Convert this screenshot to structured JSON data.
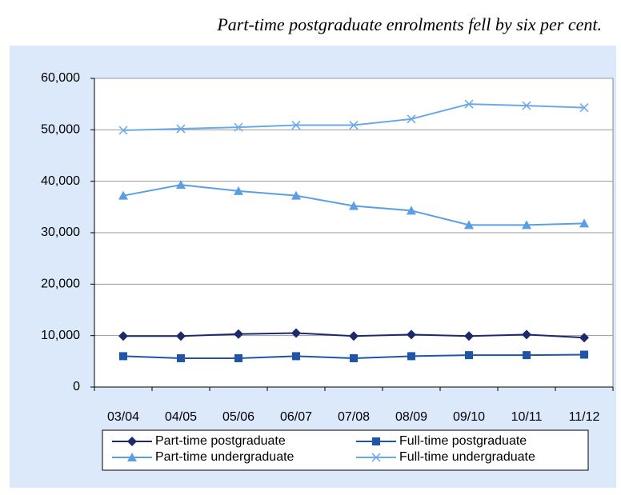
{
  "chart_data": {
    "type": "line",
    "title": "Part-time postgraduate enrolments fell by six per cent.",
    "categories": [
      "03/04",
      "04/05",
      "05/06",
      "06/07",
      "07/08",
      "08/09",
      "09/10",
      "10/11",
      "11/12"
    ],
    "series": [
      {
        "name": "Part-time postgraduate",
        "color": "#1c2a6b",
        "marker": "diamond",
        "values": [
          9900,
          9900,
          10300,
          10500,
          9900,
          10200,
          9900,
          10200,
          9600
        ]
      },
      {
        "name": "Full-time postgraduate",
        "color": "#1f55a8",
        "marker": "square",
        "values": [
          6000,
          5600,
          5600,
          6000,
          5600,
          6000,
          6200,
          6200,
          6300
        ]
      },
      {
        "name": "Part-time undergraduate",
        "color": "#5b9ee6",
        "marker": "triangle",
        "values": [
          37200,
          39300,
          38100,
          37200,
          35200,
          34300,
          31500,
          31500,
          31800
        ]
      },
      {
        "name": "Full-time undergraduate",
        "color": "#6aa8ec",
        "marker": "x",
        "values": [
          49900,
          50200,
          50500,
          50900,
          50900,
          52100,
          55000,
          54700,
          54300
        ]
      }
    ],
    "ylim": [
      0,
      60000
    ],
    "yticks": [
      0,
      {
        "value": 10000,
        "label": "10,000"
      },
      {
        "value": 20000,
        "label": "20,000"
      },
      {
        "value": 30000,
        "label": "30,000"
      },
      {
        "value": 40000,
        "label": "40,000"
      },
      {
        "value": 50000,
        "label": "50,000"
      },
      {
        "value": 60000,
        "label": "60,000"
      }
    ],
    "grid": true
  }
}
